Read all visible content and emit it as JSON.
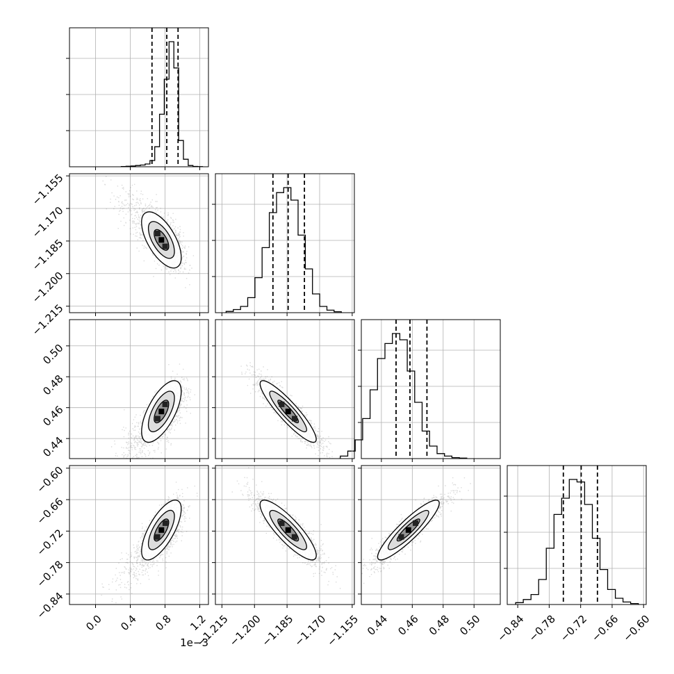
{
  "chart_data": {
    "type": "corner",
    "grid": true,
    "parameters": [
      {
        "key": "p0",
        "range": [
          -0.3,
          1.3
        ],
        "ticks": [
          0.0,
          0.4,
          0.8,
          1.2
        ],
        "tick_labels": [
          "0.0",
          "0.4",
          "0.8",
          "1.2"
        ],
        "offset_label": "1e−3",
        "mean": 0.8,
        "sigma": 0.12,
        "quantiles": [
          0.65,
          0.82,
          0.95
        ],
        "hist": [
          0.002,
          0.004,
          0.006,
          0.01,
          0.014,
          0.022,
          0.05,
          0.16,
          0.42,
          0.7,
          1.0,
          0.79,
          0.21,
          0.06,
          0.01,
          0.003,
          0.001
        ]
      },
      {
        "key": "p1",
        "range": [
          -1.218,
          -1.154
        ],
        "ticks": [
          -1.215,
          -1.2,
          -1.185,
          -1.17,
          -1.155
        ],
        "tick_labels": [
          "−1.215",
          "−1.200",
          "−1.185",
          "−1.170",
          "−1.155"
        ],
        "mean": -1.1845,
        "sigma": 0.0068,
        "quantiles": [
          -1.1915,
          -1.1845,
          -1.177
        ],
        "hist": [
          0.01,
          0.025,
          0.05,
          0.12,
          0.28,
          0.52,
          0.8,
          0.96,
          1.0,
          0.9,
          0.62,
          0.35,
          0.15,
          0.05,
          0.02,
          0.008
        ]
      },
      {
        "key": "p2",
        "range": [
          0.427,
          0.517
        ],
        "ticks": [
          0.44,
          0.46,
          0.48,
          0.5
        ],
        "tick_labels": [
          "0.44",
          "0.46",
          "0.48",
          "0.50"
        ],
        "mean": 0.4575,
        "sigma": 0.0105,
        "quantiles": [
          0.4495,
          0.4585,
          0.4695
        ],
        "hist": [
          0.02,
          0.06,
          0.15,
          0.32,
          0.55,
          0.8,
          0.92,
          1.0,
          0.95,
          0.7,
          0.45,
          0.22,
          0.1,
          0.04,
          0.02,
          0.008,
          0.004
        ]
      },
      {
        "key": "p3",
        "range": [
          -0.86,
          -0.595
        ],
        "ticks": [
          -0.84,
          -0.78,
          -0.72,
          -0.66,
          -0.6
        ],
        "tick_labels": [
          "−0.84",
          "−0.78",
          "−0.72",
          "−0.66",
          "−0.60"
        ],
        "mean": -0.718,
        "sigma": 0.03,
        "quantiles": [
          -0.753,
          -0.719,
          -0.688
        ],
        "hist": [
          0.015,
          0.04,
          0.08,
          0.2,
          0.45,
          0.72,
          0.85,
          1.0,
          0.98,
          0.8,
          0.53,
          0.28,
          0.12,
          0.05,
          0.02,
          0.008
        ]
      }
    ],
    "correlations": {
      "1-0": -0.62,
      "2-0": 0.65,
      "2-1": -0.9,
      "3-0": 0.7,
      "3-1": -0.85,
      "3-2": 0.9
    }
  }
}
